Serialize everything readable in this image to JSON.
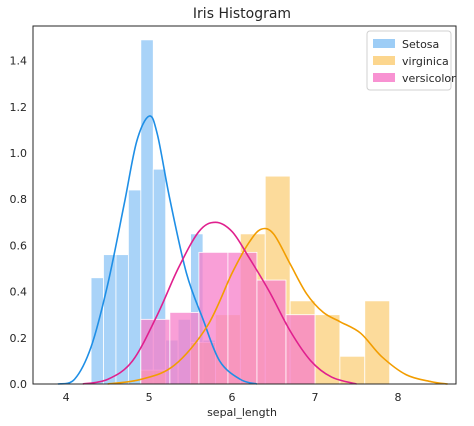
{
  "chart_data": {
    "type": "bar",
    "title": "Iris Histogram",
    "xlabel": "sepal_length",
    "ylabel": "",
    "xlim": [
      3.6,
      8.7
    ],
    "ylim": [
      0,
      1.55
    ],
    "xticks": [
      "4",
      "5",
      "6",
      "7",
      "8"
    ],
    "yticks": [
      "0.0",
      "0.2",
      "0.4",
      "0.6",
      "0.8",
      "1.0",
      "1.2",
      "1.4"
    ],
    "grid": false,
    "legend_position": "top-right",
    "series": [
      {
        "name": "Setosa",
        "hist_color": "#8cc4f5",
        "kde_color": "#1f8fe6",
        "bins": [
          {
            "x0": 4.3,
            "x1": 4.45,
            "value": 0.46
          },
          {
            "x0": 4.45,
            "x1": 4.6,
            "value": 0.56
          },
          {
            "x0": 4.6,
            "x1": 4.75,
            "value": 0.56
          },
          {
            "x0": 4.75,
            "x1": 4.9,
            "value": 0.84
          },
          {
            "x0": 4.9,
            "x1": 5.05,
            "value": 1.49
          },
          {
            "x0": 5.05,
            "x1": 5.2,
            "value": 0.93
          },
          {
            "x0": 5.2,
            "x1": 5.35,
            "value": 0.19
          },
          {
            "x0": 5.35,
            "x1": 5.5,
            "value": 0.28
          },
          {
            "x0": 5.5,
            "x1": 5.65,
            "value": 0.65
          },
          {
            "x0": 5.65,
            "x1": 5.8,
            "value": 0.19
          }
        ],
        "kde": [
          [
            3.9,
            0.0
          ],
          [
            4.1,
            0.02
          ],
          [
            4.3,
            0.16
          ],
          [
            4.5,
            0.43
          ],
          [
            4.7,
            0.78
          ],
          [
            4.85,
            1.05
          ],
          [
            5.0,
            1.16
          ],
          [
            5.1,
            1.08
          ],
          [
            5.25,
            0.8
          ],
          [
            5.45,
            0.48
          ],
          [
            5.65,
            0.28
          ],
          [
            5.85,
            0.1
          ],
          [
            6.1,
            0.02
          ],
          [
            6.3,
            0.0
          ]
        ]
      },
      {
        "name": "virginica",
        "hist_color": "#fbcf7a",
        "kde_color": "#f29d00",
        "bins": [
          {
            "x0": 4.9,
            "x1": 5.2,
            "value": 0.06
          },
          {
            "x0": 5.2,
            "x1": 5.5,
            "value": 0.0
          },
          {
            "x0": 5.5,
            "x1": 5.8,
            "value": 0.18
          },
          {
            "x0": 5.8,
            "x1": 6.1,
            "value": 0.3
          },
          {
            "x0": 6.1,
            "x1": 6.4,
            "value": 0.65
          },
          {
            "x0": 6.4,
            "x1": 6.7,
            "value": 0.9
          },
          {
            "x0": 6.7,
            "x1": 7.0,
            "value": 0.36
          },
          {
            "x0": 7.0,
            "x1": 7.3,
            "value": 0.3
          },
          {
            "x0": 7.3,
            "x1": 7.6,
            "value": 0.12
          },
          {
            "x0": 7.6,
            "x1": 7.9,
            "value": 0.36
          }
        ],
        "kde": [
          [
            4.5,
            0.0
          ],
          [
            4.9,
            0.02
          ],
          [
            5.3,
            0.08
          ],
          [
            5.7,
            0.25
          ],
          [
            6.0,
            0.48
          ],
          [
            6.2,
            0.61
          ],
          [
            6.35,
            0.67
          ],
          [
            6.5,
            0.65
          ],
          [
            6.7,
            0.52
          ],
          [
            6.9,
            0.39
          ],
          [
            7.1,
            0.31
          ],
          [
            7.3,
            0.27
          ],
          [
            7.55,
            0.22
          ],
          [
            7.8,
            0.12
          ],
          [
            8.1,
            0.04
          ],
          [
            8.4,
            0.01
          ],
          [
            8.6,
            0.0
          ]
        ]
      },
      {
        "name": "versicolor",
        "hist_color": "#f77fca",
        "kde_color": "#e0208e",
        "bins": [
          {
            "x0": 4.9,
            "x1": 5.25,
            "value": 0.28
          },
          {
            "x0": 5.25,
            "x1": 5.6,
            "value": 0.31
          },
          {
            "x0": 5.6,
            "x1": 5.95,
            "value": 0.57
          },
          {
            "x0": 5.95,
            "x1": 6.3,
            "value": 0.57
          },
          {
            "x0": 6.3,
            "x1": 6.65,
            "value": 0.45
          },
          {
            "x0": 6.65,
            "x1": 7.0,
            "value": 0.3
          }
        ],
        "kde": [
          [
            4.2,
            0.0
          ],
          [
            4.5,
            0.02
          ],
          [
            4.8,
            0.1
          ],
          [
            5.1,
            0.3
          ],
          [
            5.35,
            0.5
          ],
          [
            5.6,
            0.66
          ],
          [
            5.8,
            0.7
          ],
          [
            6.0,
            0.66
          ],
          [
            6.2,
            0.55
          ],
          [
            6.45,
            0.4
          ],
          [
            6.7,
            0.23
          ],
          [
            6.95,
            0.1
          ],
          [
            7.2,
            0.03
          ],
          [
            7.5,
            0.0
          ]
        ]
      }
    ]
  }
}
